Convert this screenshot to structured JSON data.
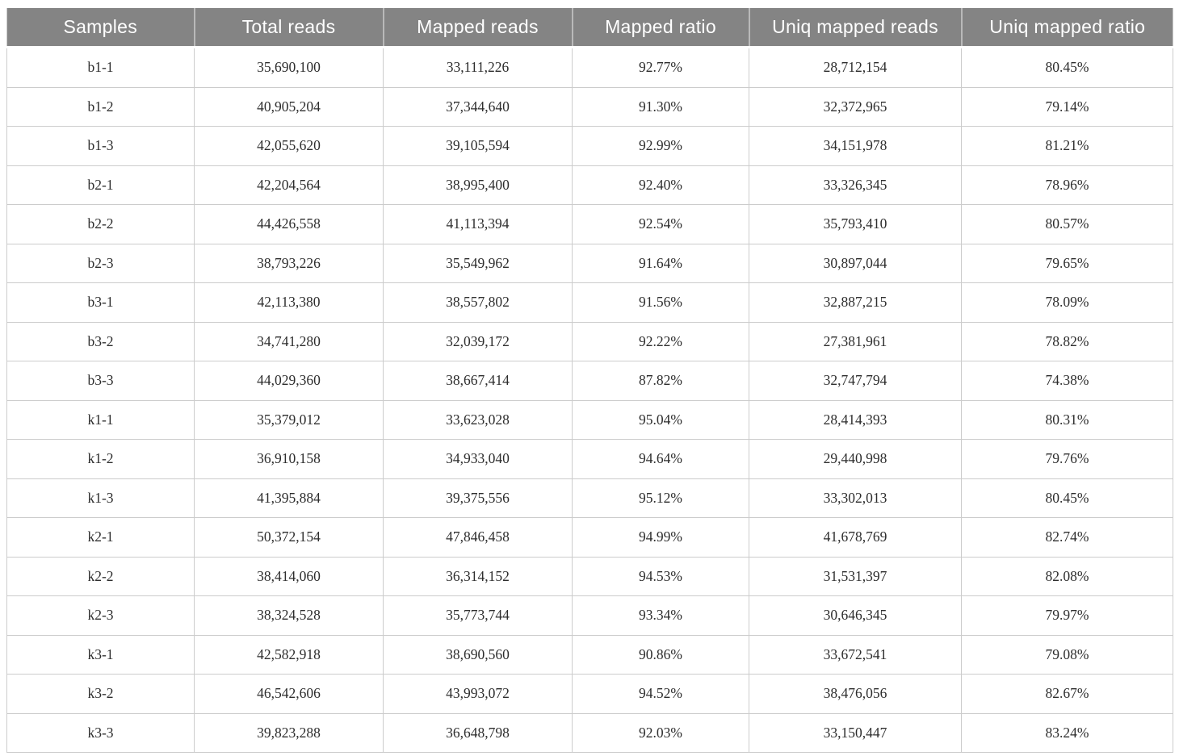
{
  "table": {
    "columns": [
      "Samples",
      "Total reads",
      "Mapped reads",
      "Mapped ratio",
      "Uniq mapped reads",
      "Uniq mapped ratio"
    ],
    "rows": [
      [
        "b1-1",
        "35,690,100",
        "33,111,226",
        "92.77%",
        "28,712,154",
        "80.45%"
      ],
      [
        "b1-2",
        "40,905,204",
        "37,344,640",
        "91.30%",
        "32,372,965",
        "79.14%"
      ],
      [
        "b1-3",
        "42,055,620",
        "39,105,594",
        "92.99%",
        "34,151,978",
        "81.21%"
      ],
      [
        "b2-1",
        "42,204,564",
        "38,995,400",
        "92.40%",
        "33,326,345",
        "78.96%"
      ],
      [
        "b2-2",
        "44,426,558",
        "41,113,394",
        "92.54%",
        "35,793,410",
        "80.57%"
      ],
      [
        "b2-3",
        "38,793,226",
        "35,549,962",
        "91.64%",
        "30,897,044",
        "79.65%"
      ],
      [
        "b3-1",
        "42,113,380",
        "38,557,802",
        "91.56%",
        "32,887,215",
        "78.09%"
      ],
      [
        "b3-2",
        "34,741,280",
        "32,039,172",
        "92.22%",
        "27,381,961",
        "78.82%"
      ],
      [
        "b3-3",
        "44,029,360",
        "38,667,414",
        "87.82%",
        "32,747,794",
        "74.38%"
      ],
      [
        "k1-1",
        "35,379,012",
        "33,623,028",
        "95.04%",
        "28,414,393",
        "80.31%"
      ],
      [
        "k1-2",
        "36,910,158",
        "34,933,040",
        "94.64%",
        "29,440,998",
        "79.76%"
      ],
      [
        "k1-3",
        "41,395,884",
        "39,375,556",
        "95.12%",
        "33,302,013",
        "80.45%"
      ],
      [
        "k2-1",
        "50,372,154",
        "47,846,458",
        "94.99%",
        "41,678,769",
        "82.74%"
      ],
      [
        "k2-2",
        "38,414,060",
        "36,314,152",
        "94.53%",
        "31,531,397",
        "82.08%"
      ],
      [
        "k2-3",
        "38,324,528",
        "35,773,744",
        "93.34%",
        "30,646,345",
        "79.97%"
      ],
      [
        "k3-1",
        "42,582,918",
        "38,690,560",
        "90.86%",
        "33,672,541",
        "79.08%"
      ],
      [
        "k3-2",
        "46,542,606",
        "43,993,072",
        "94.52%",
        "38,476,056",
        "82.67%"
      ],
      [
        "k3-3",
        "39,823,288",
        "36,648,798",
        "92.03%",
        "33,150,447",
        "83.24%"
      ]
    ]
  },
  "colors": {
    "header_bg": "#848484",
    "header_text": "#ffffff",
    "header_divider": "#b9b9b9",
    "grid": "#cccccc",
    "body_text": "#2d2d2d",
    "page_bg": "#ffffff"
  }
}
